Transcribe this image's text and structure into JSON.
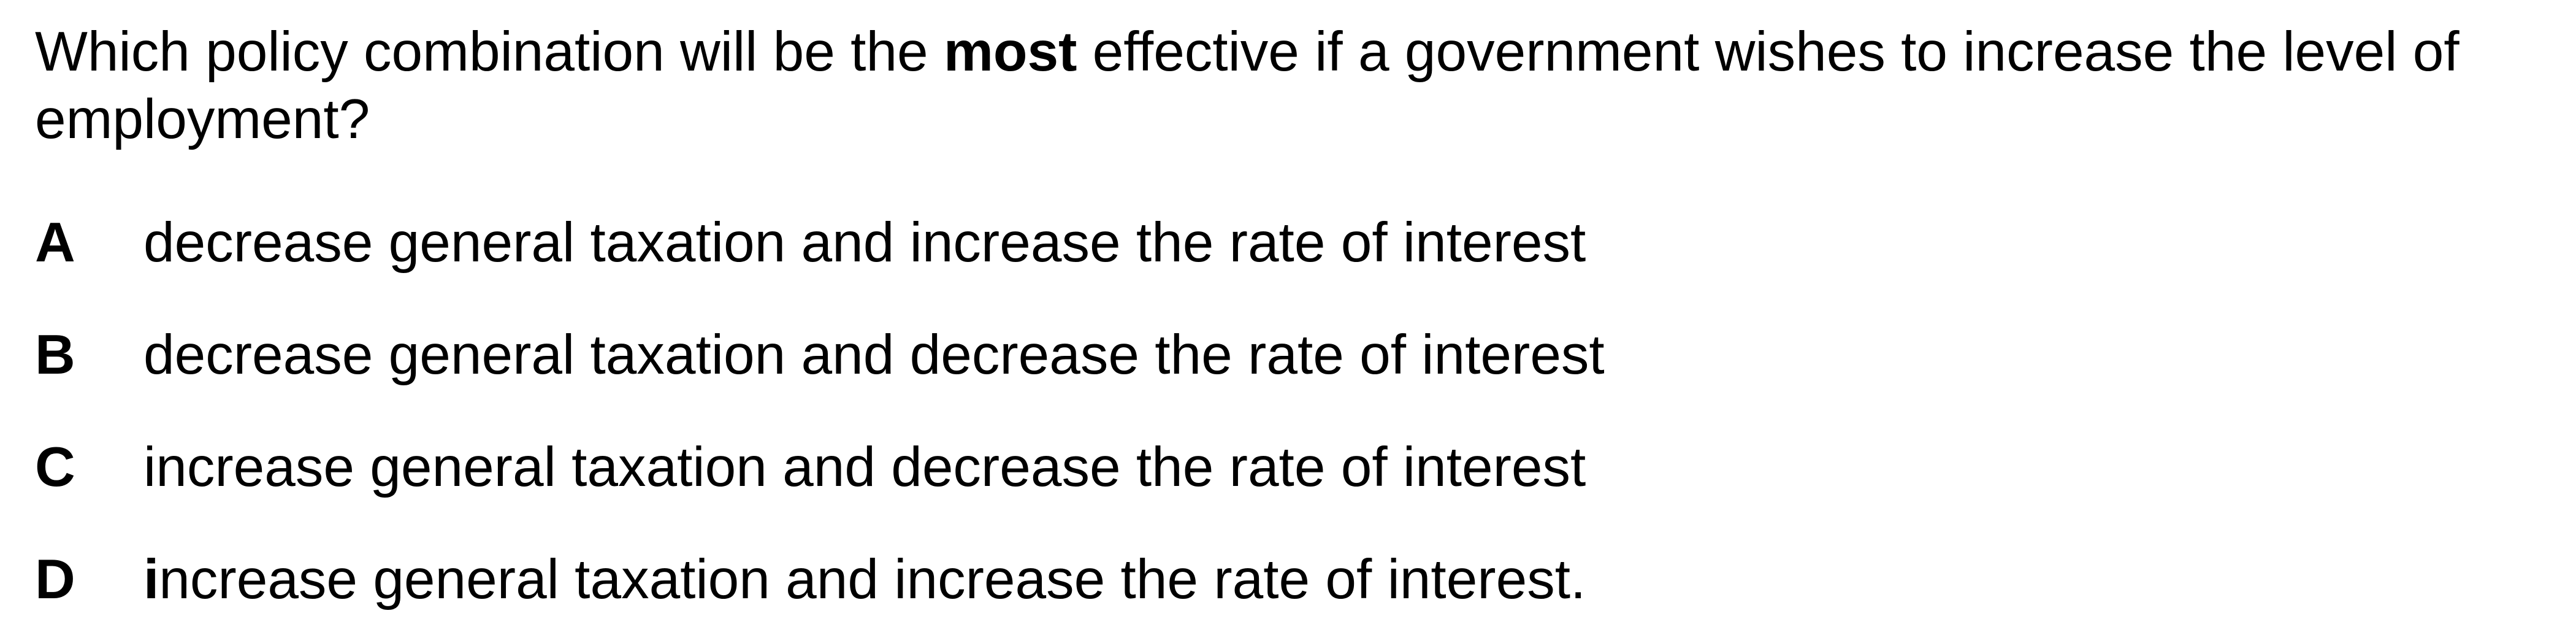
{
  "question": {
    "prefix": "Which policy combination will be the ",
    "emphasis": "most",
    "suffix": " effective if a government wishes to increase the level of employment?"
  },
  "options": [
    {
      "letter": "A",
      "text": "decrease general taxation and increase the rate of interest"
    },
    {
      "letter": "B",
      "text": "decrease general taxation and decrease the rate of interest"
    },
    {
      "letter": "C",
      "text": "increase general taxation and decrease the rate of interest"
    },
    {
      "letter": "D",
      "text_first": "i",
      "text_rest": "ncrease general taxation and increase the rate of interest."
    }
  ]
}
